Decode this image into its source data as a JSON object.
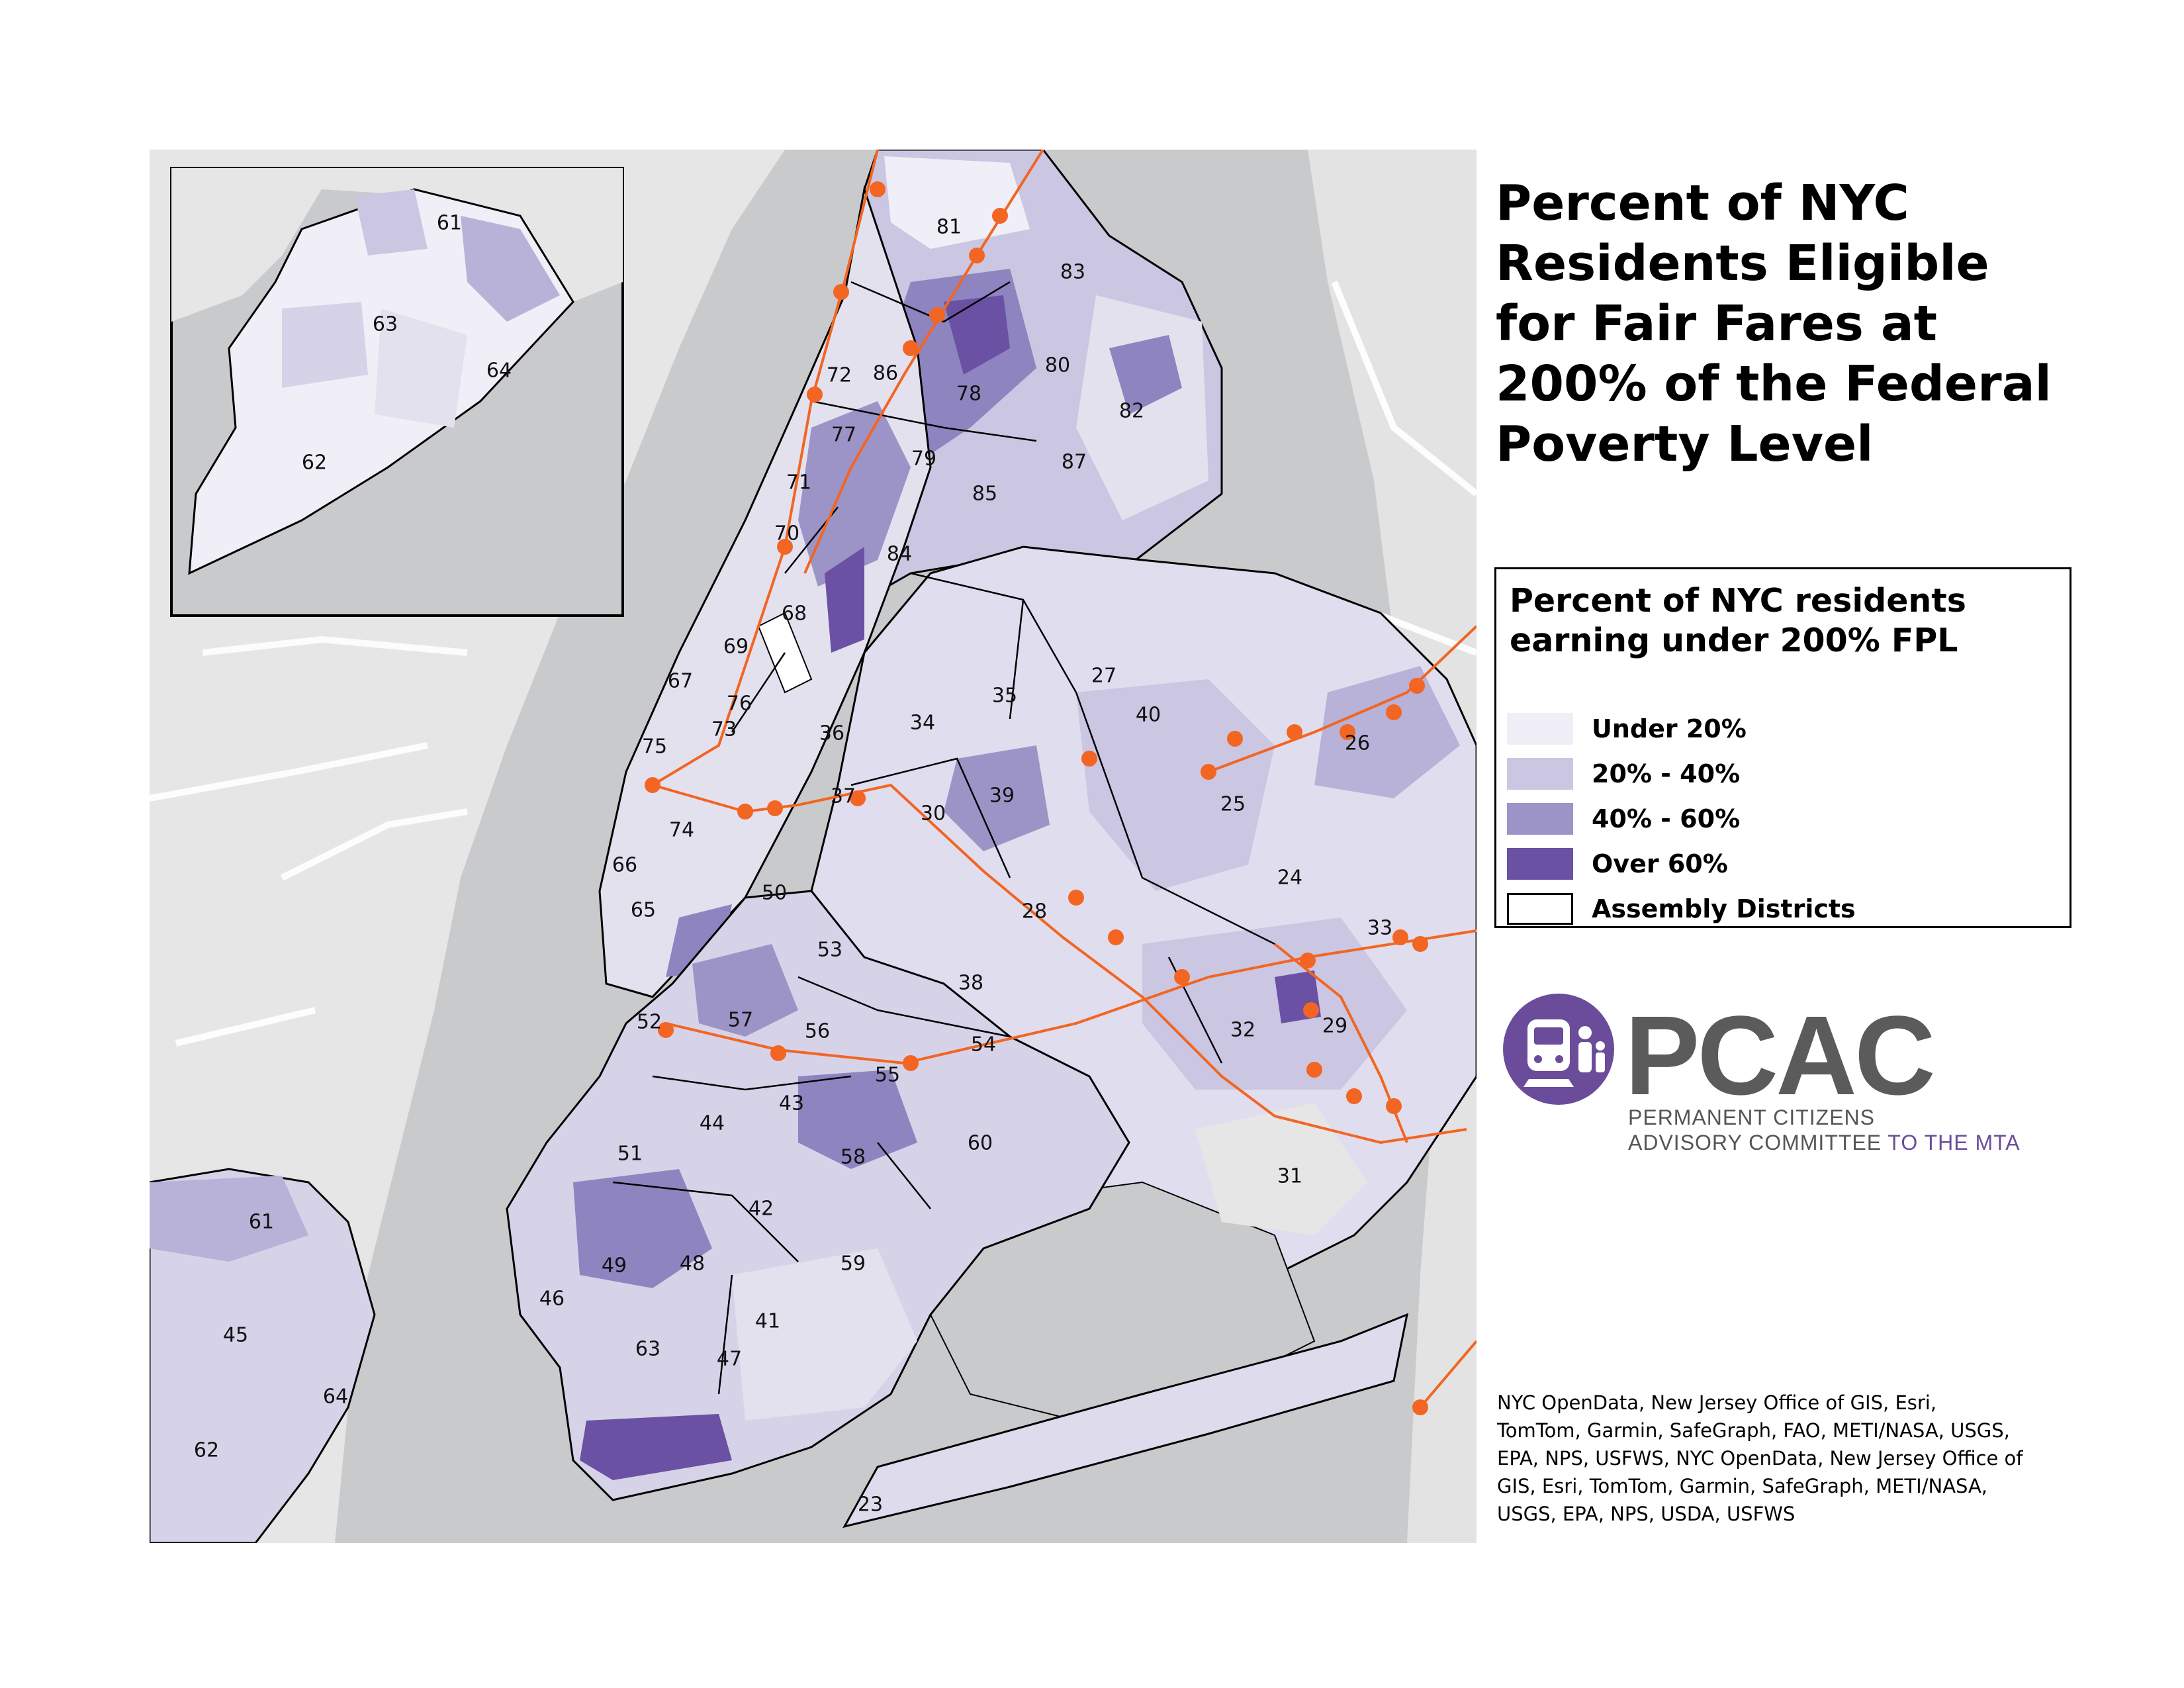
{
  "title": {
    "lines": [
      "Percent of NYC",
      "Residents Eligible",
      "for Fair Fares at",
      "200% of the Federal",
      "Poverty Level"
    ]
  },
  "legend": {
    "title_lines": [
      "Percent of NYC residents",
      "earning under 200% FPL"
    ],
    "items": [
      {
        "label": "Under 20%",
        "color": "#f0eff7",
        "icon": "swatch-under-20"
      },
      {
        "label": "20% - 40%",
        "color": "#cbc6e2",
        "icon": "swatch-20-40"
      },
      {
        "label": "40% - 60%",
        "color": "#9c94c6",
        "icon": "swatch-40-60"
      },
      {
        "label": "Over 60%",
        "color": "#6a51a3",
        "icon": "swatch-over-60"
      },
      {
        "label": "Assembly Districts",
        "color": "#ffffff",
        "icon": "swatch-assembly-districts"
      }
    ]
  },
  "logo": {
    "name": "PCAC",
    "line1": "PERMANENT CITIZENS",
    "line2_main": "ADVISORY COMMITTEE",
    "line2_accent": "TO THE MTA",
    "icon": "train-people-logo-icon",
    "accent_color": "#6b4c9a"
  },
  "credits": {
    "lines": [
      "NYC OpenData, New Jersey Office of GIS, Esri,",
      "TomTom, Garmin, SafeGraph, FAO, METI/NASA, USGS,",
      "EPA, NPS, USFWS, NYC OpenData, New Jersey Office of",
      "GIS, Esri, TomTom, Garmin, SafeGraph, METI/NASA,",
      "USGS, EPA, NPS, USDA, USFWS"
    ]
  },
  "map": {
    "rail_color": "#f26522",
    "inset_labels": [
      "61",
      "63",
      "64",
      "62"
    ],
    "district_labels": [
      "81",
      "83",
      "72",
      "86",
      "78",
      "80",
      "82",
      "77",
      "79",
      "87",
      "71",
      "85",
      "70",
      "84",
      "68",
      "69",
      "67",
      "27",
      "76",
      "35",
      "73",
      "34",
      "36",
      "40",
      "26",
      "75",
      "37",
      "39",
      "30",
      "25",
      "74",
      "66",
      "24",
      "50",
      "28",
      "65",
      "33",
      "53",
      "38",
      "52",
      "57",
      "56",
      "54",
      "32",
      "29",
      "55",
      "43",
      "44",
      "60",
      "58",
      "51",
      "31",
      "42",
      "61",
      "48",
      "49",
      "59",
      "46",
      "41",
      "63",
      "47",
      "45",
      "64",
      "62",
      "23"
    ]
  }
}
